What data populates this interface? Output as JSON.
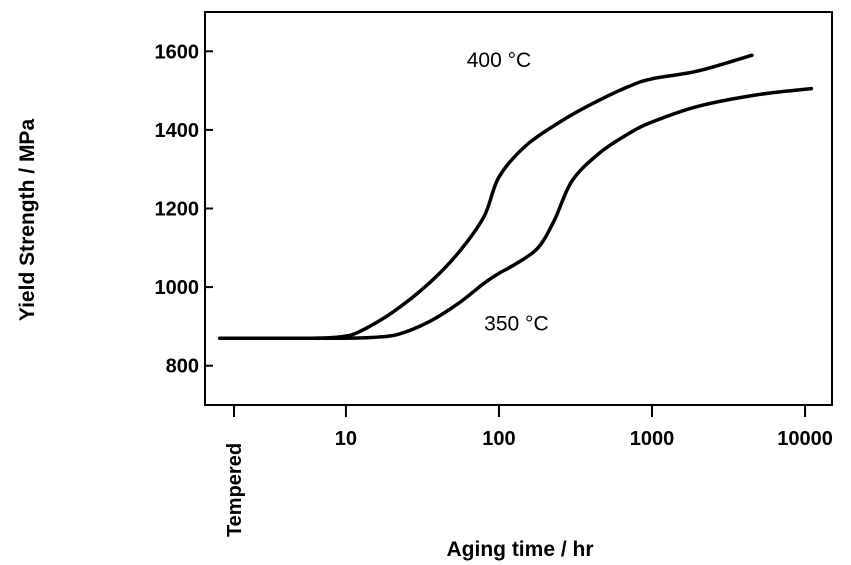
{
  "chart_data": {
    "type": "line",
    "xlabel": "Aging time / hr",
    "ylabel": "Yield Strength / MPa",
    "xscale": "log",
    "xlim": [
      1.2,
      15000
    ],
    "ylim": [
      700,
      1700
    ],
    "x_ticks": [
      10,
      100,
      1000,
      10000
    ],
    "x_tick_labels": [
      "10",
      "100",
      "1000",
      "10000"
    ],
    "x_start_label": "Tempered",
    "y_ticks": [
      800,
      1000,
      1200,
      1400,
      1600
    ],
    "y_tick_labels": [
      "800",
      "1000",
      "1200",
      "1400",
      "1600"
    ],
    "grid": false,
    "legend": "none",
    "line_color": "#000000",
    "series": [
      {
        "name": "400 °C",
        "x": [
          1.5,
          3,
          6,
          9,
          12,
          20,
          35,
          55,
          80,
          100,
          150,
          250,
          400,
          700,
          1000,
          2000,
          4500
        ],
        "y": [
          870,
          870,
          870,
          873,
          885,
          935,
          1010,
          1090,
          1180,
          1280,
          1360,
          1420,
          1465,
          1510,
          1530,
          1550,
          1590
        ]
      },
      {
        "name": "350 °C",
        "x": [
          1.5,
          3,
          6,
          10,
          15,
          22,
          35,
          55,
          80,
          100,
          130,
          180,
          230,
          300,
          450,
          700,
          1000,
          2000,
          5000,
          11000
        ],
        "y": [
          870,
          870,
          870,
          870,
          872,
          880,
          912,
          960,
          1010,
          1035,
          1060,
          1100,
          1170,
          1270,
          1340,
          1390,
          1420,
          1460,
          1490,
          1505
        ]
      }
    ],
    "annotations": [
      {
        "text": "400 °C",
        "x": 100,
        "y": 1580
      },
      {
        "text": "350 °C",
        "x": 130,
        "y": 910
      }
    ]
  }
}
